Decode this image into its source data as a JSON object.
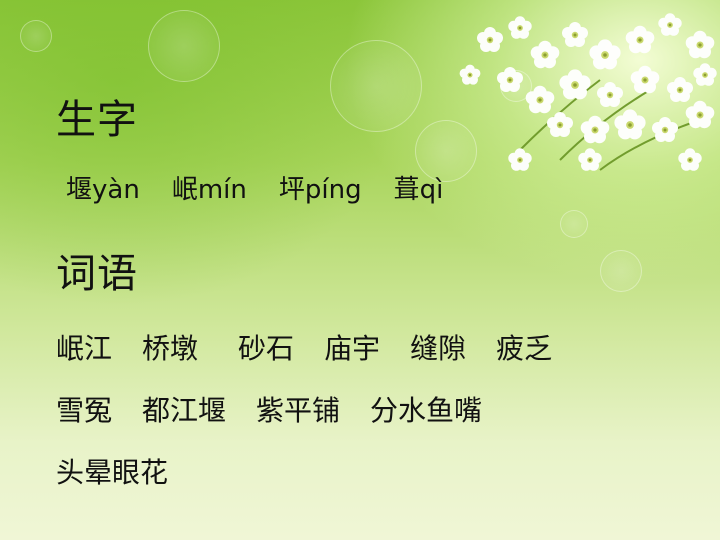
{
  "section1": {
    "title": "生字",
    "chars": [
      {
        "char": "堰",
        "pinyin": "yàn"
      },
      {
        "char": "岷",
        "pinyin": "mín"
      },
      {
        "char": "坪",
        "pinyin": "píng"
      },
      {
        "char": "葺",
        "pinyin": "qì"
      }
    ]
  },
  "section2": {
    "title": "词语",
    "rows": [
      [
        "岷江",
        "桥墩",
        "砂石",
        "庙宇",
        "缝隙",
        "疲乏"
      ],
      [
        "雪冤",
        "都江堰",
        "紫平铺",
        "分水鱼嘴"
      ],
      [
        "头晕眼花"
      ]
    ]
  },
  "colors": {
    "background_top": "#8cc63a",
    "background_bottom": "#f0f6d6",
    "text": "#111111"
  }
}
